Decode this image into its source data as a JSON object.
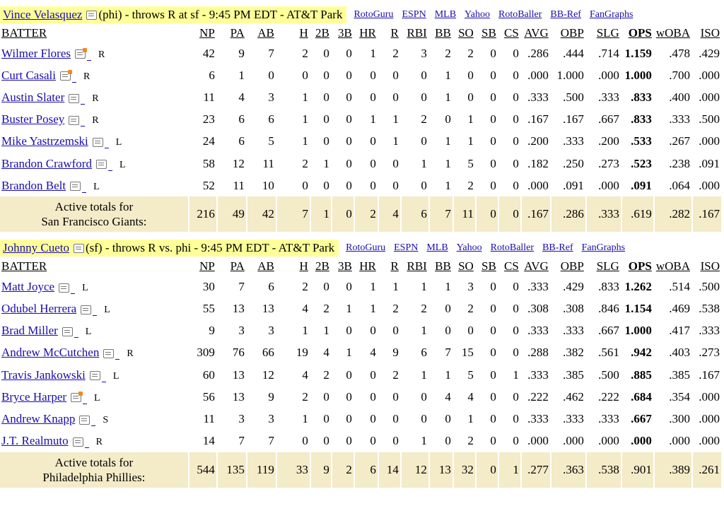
{
  "games": [
    {
      "pitcher_name": "Vince Velasquez",
      "pitcher_info": "(phi) - throws R at sf - 9:45 PM EDT - AT&T Park",
      "links": [
        "RotoGuru",
        "ESPN",
        "MLB",
        "Yahoo",
        "RotoBaller",
        "BB-Ref",
        "FanGraphs"
      ],
      "headers": [
        "BATTER",
        "NP",
        "PA",
        "AB",
        "H",
        "2B",
        "3B",
        "HR",
        "R",
        "RBI",
        "BB",
        "SO",
        "SB",
        "CS",
        "AVG",
        "OBP",
        "SLG",
        "OPS",
        "wOBA",
        "ISO"
      ],
      "batters": [
        {
          "name": "Wilmer Flores",
          "note": "hot",
          "hand": "R",
          "stats": [
            "42",
            "9",
            "7",
            "2",
            "0",
            "0",
            "1",
            "2",
            "3",
            "2",
            "2",
            "0",
            "0",
            ".286",
            ".444",
            ".714",
            "1.159",
            ".478",
            ".429"
          ]
        },
        {
          "name": "Curt Casali",
          "note": "hot",
          "hand": "R",
          "stats": [
            "6",
            "1",
            "0",
            "0",
            "0",
            "0",
            "0",
            "0",
            "0",
            "1",
            "0",
            "0",
            "0",
            ".000",
            "1.000",
            ".000",
            "1.000",
            ".700",
            ".000"
          ]
        },
        {
          "name": "Austin Slater",
          "note": "plain",
          "hand": "R",
          "stats": [
            "11",
            "4",
            "3",
            "1",
            "0",
            "0",
            "0",
            "0",
            "0",
            "1",
            "0",
            "0",
            "0",
            ".333",
            ".500",
            ".333",
            ".833",
            ".400",
            ".000"
          ]
        },
        {
          "name": "Buster Posey",
          "note": "plain",
          "hand": "R",
          "stats": [
            "23",
            "6",
            "6",
            "1",
            "0",
            "0",
            "1",
            "1",
            "2",
            "0",
            "1",
            "0",
            "0",
            ".167",
            ".167",
            ".667",
            ".833",
            ".333",
            ".500"
          ]
        },
        {
          "name": "Mike Yastrzemski",
          "note": "plain",
          "hand": "L",
          "stats": [
            "24",
            "6",
            "5",
            "1",
            "0",
            "0",
            "0",
            "1",
            "0",
            "1",
            "1",
            "0",
            "0",
            ".200",
            ".333",
            ".200",
            ".533",
            ".267",
            ".000"
          ]
        },
        {
          "name": "Brandon Crawford",
          "note": "plain",
          "hand": "L",
          "stats": [
            "58",
            "12",
            "11",
            "2",
            "1",
            "0",
            "0",
            "0",
            "1",
            "1",
            "5",
            "0",
            "0",
            ".182",
            ".250",
            ".273",
            ".523",
            ".238",
            ".091"
          ]
        },
        {
          "name": "Brandon Belt",
          "note": "plain",
          "hand": "L",
          "stats": [
            "52",
            "11",
            "10",
            "0",
            "0",
            "0",
            "0",
            "0",
            "0",
            "1",
            "2",
            "0",
            "0",
            ".000",
            ".091",
            ".000",
            ".091",
            ".064",
            ".000"
          ]
        }
      ],
      "totals": {
        "label_line1": "Active totals for",
        "label_line2": "San Francisco Giants:",
        "stats": [
          "216",
          "49",
          "42",
          "7",
          "1",
          "0",
          "2",
          "4",
          "6",
          "7",
          "11",
          "0",
          "0",
          ".167",
          ".286",
          ".333",
          ".619",
          ".282",
          ".167"
        ]
      }
    },
    {
      "pitcher_name": "Johnny Cueto",
      "pitcher_info": "(sf) - throws R vs. phi - 9:45 PM EDT - AT&T Park",
      "links": [
        "RotoGuru",
        "ESPN",
        "MLB",
        "Yahoo",
        "RotoBaller",
        "BB-Ref",
        "FanGraphs"
      ],
      "headers": [
        "BATTER",
        "NP",
        "PA",
        "AB",
        "H",
        "2B",
        "3B",
        "HR",
        "R",
        "RBI",
        "BB",
        "SO",
        "SB",
        "CS",
        "AVG",
        "OBP",
        "SLG",
        "OPS",
        "wOBA",
        "ISO"
      ],
      "batters": [
        {
          "name": "Matt Joyce",
          "note": "plain",
          "hand": "L",
          "stats": [
            "30",
            "7",
            "6",
            "2",
            "0",
            "0",
            "1",
            "1",
            "1",
            "1",
            "3",
            "0",
            "0",
            ".333",
            ".429",
            ".833",
            "1.262",
            ".514",
            ".500"
          ]
        },
        {
          "name": "Odubel Herrera",
          "note": "plain",
          "hand": "L",
          "stats": [
            "55",
            "13",
            "13",
            "4",
            "2",
            "1",
            "1",
            "2",
            "2",
            "0",
            "2",
            "0",
            "0",
            ".308",
            ".308",
            ".846",
            "1.154",
            ".469",
            ".538"
          ]
        },
        {
          "name": "Brad Miller",
          "note": "plain",
          "hand": "L",
          "stats": [
            "9",
            "3",
            "3",
            "1",
            "1",
            "0",
            "0",
            "0",
            "1",
            "0",
            "0",
            "0",
            "0",
            ".333",
            ".333",
            ".667",
            "1.000",
            ".417",
            ".333"
          ]
        },
        {
          "name": "Andrew McCutchen",
          "note": "plain",
          "hand": "R",
          "stats": [
            "309",
            "76",
            "66",
            "19",
            "4",
            "1",
            "4",
            "9",
            "6",
            "7",
            "15",
            "0",
            "0",
            ".288",
            ".382",
            ".561",
            ".942",
            ".403",
            ".273"
          ]
        },
        {
          "name": "Travis Jankowski",
          "note": "plain",
          "hand": "L",
          "stats": [
            "60",
            "13",
            "12",
            "4",
            "2",
            "0",
            "0",
            "2",
            "1",
            "1",
            "5",
            "0",
            "1",
            ".333",
            ".385",
            ".500",
            ".885",
            ".385",
            ".167"
          ]
        },
        {
          "name": "Bryce Harper",
          "note": "hot",
          "hand": "L",
          "stats": [
            "56",
            "13",
            "9",
            "2",
            "0",
            "0",
            "0",
            "0",
            "0",
            "4",
            "4",
            "0",
            "0",
            ".222",
            ".462",
            ".222",
            ".684",
            ".354",
            ".000"
          ]
        },
        {
          "name": "Andrew Knapp",
          "note": "plain",
          "hand": "S",
          "stats": [
            "11",
            "3",
            "3",
            "1",
            "0",
            "0",
            "0",
            "0",
            "0",
            "0",
            "1",
            "0",
            "0",
            ".333",
            ".333",
            ".333",
            ".667",
            ".300",
            ".000"
          ]
        },
        {
          "name": "J.T. Realmuto",
          "note": "plain",
          "hand": "R",
          "stats": [
            "14",
            "7",
            "7",
            "0",
            "0",
            "0",
            "0",
            "0",
            "1",
            "0",
            "2",
            "0",
            "0",
            ".000",
            ".000",
            ".000",
            ".000",
            ".000",
            ".000"
          ]
        }
      ],
      "totals": {
        "label_line1": "Active totals for",
        "label_line2": "Philadelphia Phillies:",
        "stats": [
          "544",
          "135",
          "119",
          "33",
          "9",
          "2",
          "6",
          "14",
          "12",
          "13",
          "32",
          "0",
          "1",
          ".277",
          ".363",
          ".538",
          ".901",
          ".389",
          ".261"
        ]
      }
    }
  ]
}
